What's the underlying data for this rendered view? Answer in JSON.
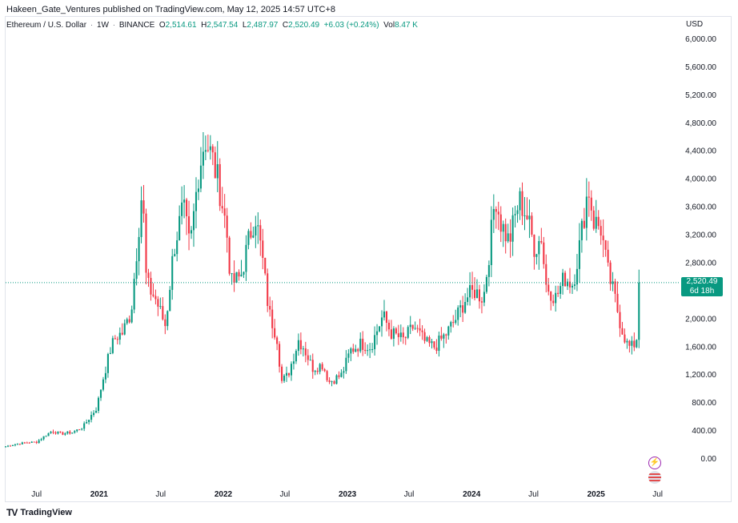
{
  "header": {
    "publisher_line": "Hakeen_Gate_Ventures published on TradingView.com, May 12, 2025 14:57 UTC+8"
  },
  "ohlc": {
    "symbol": "Ethereum / U.S. Dollar",
    "interval": "1W",
    "exchange": "BINANCE",
    "open_label": "O",
    "open": "2,514.61",
    "high_label": "H",
    "high": "2,547.54",
    "low_label": "L",
    "low": "2,487.97",
    "close_label": "C",
    "close": "2,520.49",
    "change": "+6.03 (+0.24%)",
    "vol_label": "Vol",
    "volume": "8.47 K"
  },
  "currency": "USD",
  "last_price": {
    "value": "2,520.49",
    "countdown": "6d 18h"
  },
  "brand": "TradingView",
  "icons": {
    "flag": "us-flag-icon",
    "event": "lightning-icon",
    "logo": "tradingview-logo-icon"
  },
  "colors": {
    "up": "#089981",
    "down": "#f23645",
    "price_line": "#089981"
  },
  "chart_data": {
    "type": "candlestick",
    "title": "Ethereum / U.S. Dollar · 1W · BINANCE",
    "ylabel": "USD",
    "ylim": [
      -300,
      6300
    ],
    "y_ticks": [
      "6,000.00",
      "5,600.00",
      "5,200.00",
      "4,800.00",
      "4,400.00",
      "4,000.00",
      "3,600.00",
      "3,200.00",
      "2,800.00",
      "2,400.00",
      "2,000.00",
      "1,600.00",
      "1,200.00",
      "800.00",
      "400.00",
      "0.00"
    ],
    "y_tick_values": [
      6000,
      5600,
      5200,
      4800,
      4400,
      4000,
      3600,
      3200,
      2800,
      2400,
      2000,
      1600,
      1200,
      800,
      400,
      0
    ],
    "x_ticks": [
      "Jul",
      "2021",
      "Jul",
      "2022",
      "Jul",
      "2023",
      "Jul",
      "2024",
      "Jul",
      "2025",
      "Jul"
    ],
    "x_tick_dates": [
      "2020-07-01",
      "2021-01-01",
      "2021-07-01",
      "2022-01-01",
      "2022-07-01",
      "2023-01-01",
      "2023-07-01",
      "2024-01-01",
      "2024-07-01",
      "2025-01-01",
      "2025-07-01"
    ],
    "xlim": [
      "2020-04-01",
      "2025-09-01"
    ],
    "last_price": 2520.49,
    "price_anchors": [
      [
        "2020-04-01",
        180
      ],
      [
        "2020-05-01",
        210
      ],
      [
        "2020-06-01",
        235
      ],
      [
        "2020-07-01",
        240
      ],
      [
        "2020-07-20",
        310
      ],
      [
        "2020-08-15",
        400
      ],
      [
        "2020-09-10",
        360
      ],
      [
        "2020-10-15",
        380
      ],
      [
        "2020-11-15",
        460
      ],
      [
        "2020-12-05",
        600
      ],
      [
        "2020-12-25",
        730
      ],
      [
        "2021-01-10",
        1100
      ],
      [
        "2021-02-05",
        1600
      ],
      [
        "2021-02-20",
        1750
      ],
      [
        "2021-03-10",
        1800
      ],
      [
        "2021-04-05",
        2100
      ],
      [
        "2021-05-08",
        3900
      ],
      [
        "2021-05-20",
        2500
      ],
      [
        "2021-06-15",
        2300
      ],
      [
        "2021-07-15",
        1900
      ],
      [
        "2021-08-08",
        3000
      ],
      [
        "2021-09-05",
        3600
      ],
      [
        "2021-09-25",
        3000
      ],
      [
        "2021-10-20",
        4100
      ],
      [
        "2021-11-08",
        4600
      ],
      [
        "2021-11-29",
        4300
      ],
      [
        "2021-12-20",
        3900
      ],
      [
        "2022-01-10",
        3300
      ],
      [
        "2022-01-24",
        2500
      ],
      [
        "2022-02-21",
        2600
      ],
      [
        "2022-03-20",
        3200
      ],
      [
        "2022-04-05",
        3500
      ],
      [
        "2022-04-25",
        2900
      ],
      [
        "2022-05-15",
        2100
      ],
      [
        "2022-06-10",
        1700
      ],
      [
        "2022-06-20",
        1100
      ],
      [
        "2022-07-10",
        1200
      ],
      [
        "2022-08-10",
        1700
      ],
      [
        "2022-08-25",
        1600
      ],
      [
        "2022-09-20",
        1300
      ],
      [
        "2022-10-20",
        1350
      ],
      [
        "2022-11-08",
        1100
      ],
      [
        "2022-12-15",
        1200
      ],
      [
        "2023-01-10",
        1550
      ],
      [
        "2023-02-10",
        1650
      ],
      [
        "2023-03-10",
        1600
      ],
      [
        "2023-04-15",
        2050
      ],
      [
        "2023-05-10",
        1800
      ],
      [
        "2023-06-15",
        1700
      ],
      [
        "2023-07-15",
        1900
      ],
      [
        "2023-08-20",
        1650
      ],
      [
        "2023-09-15",
        1600
      ],
      [
        "2023-10-20",
        1800
      ],
      [
        "2023-11-15",
        2000
      ],
      [
        "2023-12-15",
        2300
      ],
      [
        "2024-01-10",
        2400
      ],
      [
        "2024-02-05",
        2300
      ],
      [
        "2024-02-25",
        3100
      ],
      [
        "2024-03-11",
        3800
      ],
      [
        "2024-03-25",
        3400
      ],
      [
        "2024-04-20",
        3100
      ],
      [
        "2024-05-20",
        3700
      ],
      [
        "2024-06-10",
        3500
      ],
      [
        "2024-07-05",
        3000
      ],
      [
        "2024-07-25",
        3200
      ],
      [
        "2024-08-05",
        2500
      ],
      [
        "2024-09-05",
        2300
      ],
      [
        "2024-09-30",
        2600
      ],
      [
        "2024-10-25",
        2500
      ],
      [
        "2024-11-15",
        3100
      ],
      [
        "2024-12-09",
        3900
      ],
      [
        "2024-12-25",
        3400
      ],
      [
        "2025-01-15",
        3300
      ],
      [
        "2025-02-03",
        2700
      ],
      [
        "2025-02-25",
        2300
      ],
      [
        "2025-03-15",
        1900
      ],
      [
        "2025-04-05",
        1600
      ],
      [
        "2025-04-20",
        1600
      ],
      [
        "2025-05-05",
        1800
      ],
      [
        "2025-05-12",
        2520
      ]
    ]
  }
}
